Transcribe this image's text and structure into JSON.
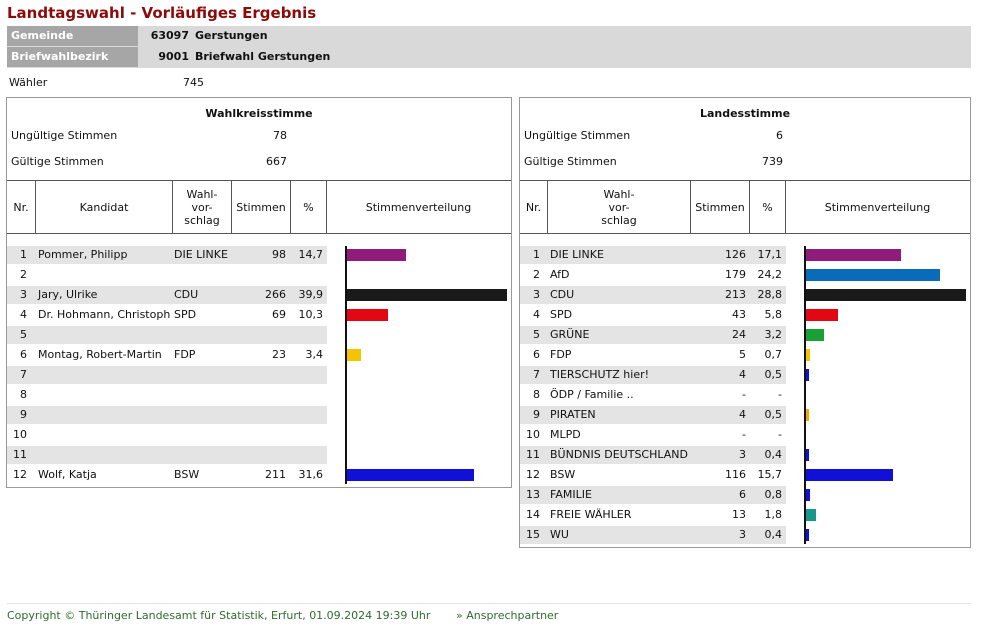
{
  "page": {
    "title": "Landtagswahl - Vorläufiges Ergebnis",
    "gemeinde": {
      "label": "Gemeinde",
      "number": "63097",
      "name": "Gerstungen"
    },
    "bezirk": {
      "label": "Briefwahlbezirk",
      "number": "9001",
      "name": "Briefwahl Gerstungen"
    },
    "waehler": {
      "label": "Wähler",
      "value": "745"
    }
  },
  "wahlkreis": {
    "title": "Wahlkreisstimme",
    "invalid": {
      "label": "Ungültige Stimmen",
      "value": "78"
    },
    "valid": {
      "label": "Gültige Stimmen",
      "value": "667"
    },
    "headers": {
      "nr": "Nr.",
      "kandidat": "Kandidat",
      "vorschlag": "Wahl-\nvor-\nschlag",
      "stimmen": "Stimmen",
      "pct": "%",
      "verteilung": "Stimmenverteilung"
    },
    "rows": [
      {
        "nr": "1",
        "kandidat": "Pommer, Philipp",
        "partei": "DIE LINKE",
        "stimmen": "98",
        "pct": "14,7",
        "share": 14.7,
        "color": "#8f1b7a"
      },
      {
        "nr": "2",
        "kandidat": "",
        "partei": "",
        "stimmen": "",
        "pct": "",
        "share": 0,
        "color": ""
      },
      {
        "nr": "3",
        "kandidat": "Jary, Ulrike",
        "partei": "CDU",
        "stimmen": "266",
        "pct": "39,9",
        "share": 39.9,
        "color": "#1a1a1a"
      },
      {
        "nr": "4",
        "kandidat": "Dr. Hohmann, Christoph",
        "partei": "SPD",
        "stimmen": "69",
        "pct": "10,3",
        "share": 10.3,
        "color": "#e30613"
      },
      {
        "nr": "5",
        "kandidat": "",
        "partei": "",
        "stimmen": "",
        "pct": "",
        "share": 0,
        "color": ""
      },
      {
        "nr": "6",
        "kandidat": "Montag, Robert-Martin",
        "partei": "FDP",
        "stimmen": "23",
        "pct": "3,4",
        "share": 3.4,
        "color": "#f5c400"
      },
      {
        "nr": "7",
        "kandidat": "",
        "partei": "",
        "stimmen": "",
        "pct": "",
        "share": 0,
        "color": ""
      },
      {
        "nr": "8",
        "kandidat": "",
        "partei": "",
        "stimmen": "",
        "pct": "",
        "share": 0,
        "color": ""
      },
      {
        "nr": "9",
        "kandidat": "",
        "partei": "",
        "stimmen": "",
        "pct": "",
        "share": 0,
        "color": ""
      },
      {
        "nr": "10",
        "kandidat": "",
        "partei": "",
        "stimmen": "",
        "pct": "",
        "share": 0,
        "color": ""
      },
      {
        "nr": "11",
        "kandidat": "",
        "partei": "",
        "stimmen": "",
        "pct": "",
        "share": 0,
        "color": ""
      },
      {
        "nr": "12",
        "kandidat": "Wolf, Katja",
        "partei": "BSW",
        "stimmen": "211",
        "pct": "31,6",
        "share": 31.6,
        "color": "#1010d8"
      }
    ]
  },
  "landes": {
    "title": "Landesstimme",
    "invalid": {
      "label": "Ungültige Stimmen",
      "value": "6"
    },
    "valid": {
      "label": "Gültige Stimmen",
      "value": "739"
    },
    "headers": {
      "nr": "Nr.",
      "vorschlag": "Wahl-\nvor-\nschlag",
      "stimmen": "Stimmen",
      "pct": "%",
      "verteilung": "Stimmenverteilung"
    },
    "rows": [
      {
        "nr": "1",
        "partei": "DIE LINKE",
        "stimmen": "126",
        "pct": "17,1",
        "share": 17.1,
        "color": "#8f1b7a"
      },
      {
        "nr": "2",
        "partei": "AfD",
        "stimmen": "179",
        "pct": "24,2",
        "share": 24.2,
        "color": "#0a6cb8"
      },
      {
        "nr": "3",
        "partei": "CDU",
        "stimmen": "213",
        "pct": "28,8",
        "share": 28.8,
        "color": "#1a1a1a"
      },
      {
        "nr": "4",
        "partei": "SPD",
        "stimmen": "43",
        "pct": "5,8",
        "share": 5.8,
        "color": "#e30613"
      },
      {
        "nr": "5",
        "partei": "GRÜNE",
        "stimmen": "24",
        "pct": "3,2",
        "share": 3.2,
        "color": "#1aa037"
      },
      {
        "nr": "6",
        "partei": "FDP",
        "stimmen": "5",
        "pct": "0,7",
        "share": 0.7,
        "color": "#f5c400"
      },
      {
        "nr": "7",
        "partei": "TIERSCHUTZ hier!",
        "stimmen": "4",
        "pct": "0,5",
        "share": 0.5,
        "color": "#1010d8"
      },
      {
        "nr": "8",
        "partei": "ÖDP / Familie ..",
        "stimmen": "-",
        "pct": "-",
        "share": 0,
        "color": ""
      },
      {
        "nr": "9",
        "partei": "PIRATEN",
        "stimmen": "4",
        "pct": "0,5",
        "share": 0.5,
        "color": "#f5a800"
      },
      {
        "nr": "10",
        "partei": "MLPD",
        "stimmen": "-",
        "pct": "-",
        "share": 0,
        "color": ""
      },
      {
        "nr": "11",
        "partei": "BÜNDNIS DEUTSCHLAND",
        "stimmen": "3",
        "pct": "0,4",
        "share": 0.4,
        "color": "#1010d8"
      },
      {
        "nr": "12",
        "partei": "BSW",
        "stimmen": "116",
        "pct": "15,7",
        "share": 15.7,
        "color": "#1010d8"
      },
      {
        "nr": "13",
        "partei": "FAMILIE",
        "stimmen": "6",
        "pct": "0,8",
        "share": 0.8,
        "color": "#1010d8"
      },
      {
        "nr": "14",
        "partei": "FREIE WÄHLER",
        "stimmen": "13",
        "pct": "1,8",
        "share": 1.8,
        "color": "#17988a"
      },
      {
        "nr": "15",
        "partei": "WU",
        "stimmen": "3",
        "pct": "0,4",
        "share": 0.4,
        "color": "#1010d8"
      }
    ]
  },
  "footer": {
    "copyright": "Copyright © Thüringer Landesamt für Statistik, Erfurt, 01.09.2024 19:39 Uhr",
    "contact": "» Ansprechpartner"
  }
}
